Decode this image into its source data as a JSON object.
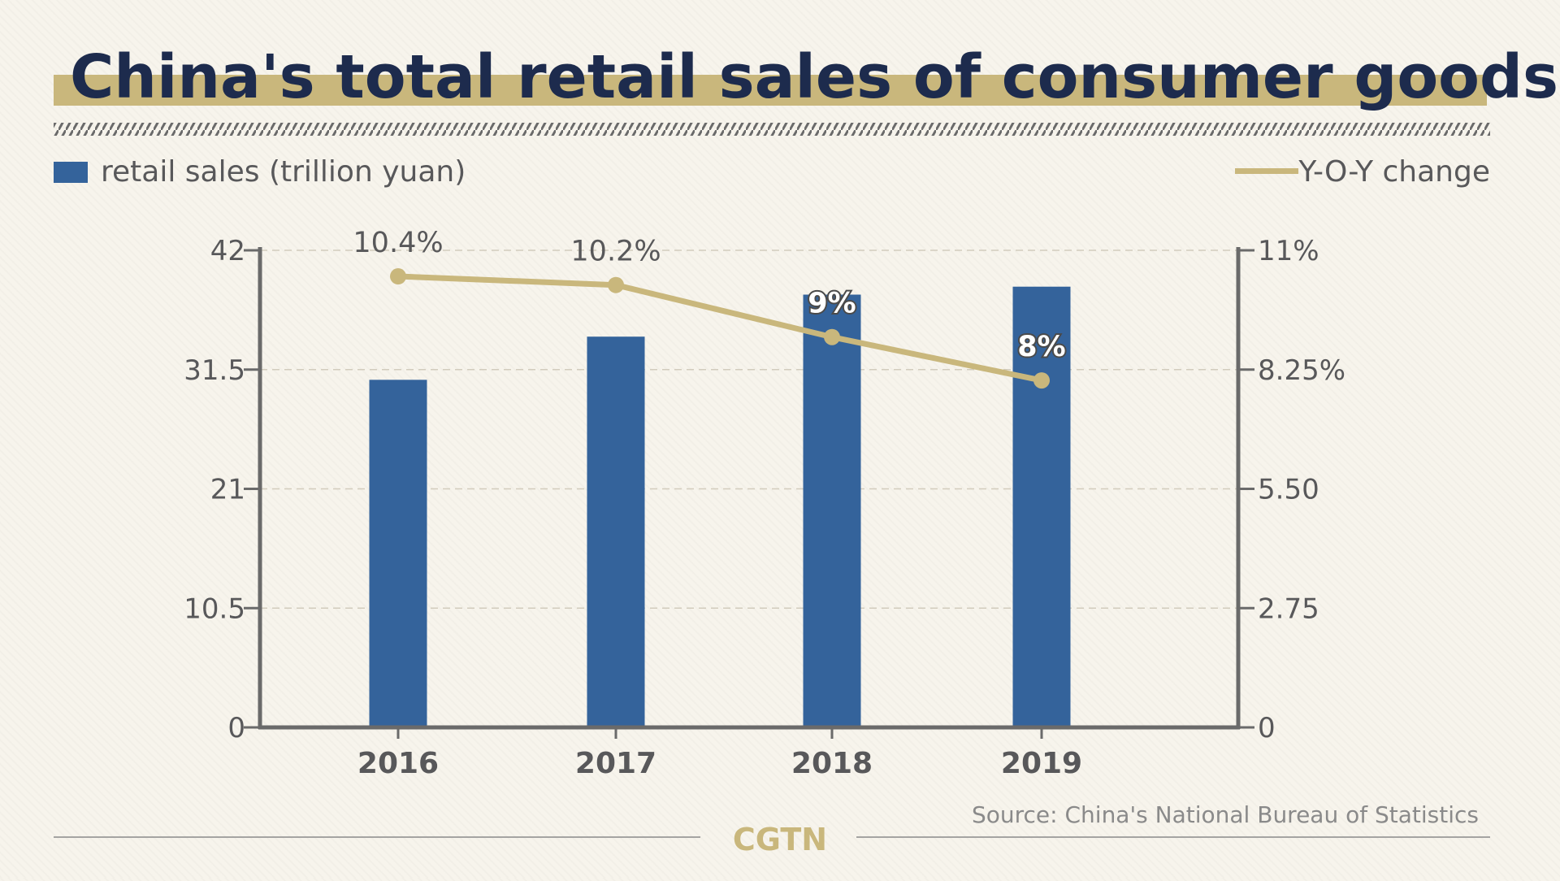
{
  "title": "China's total retail sales of consumer goods",
  "colors": {
    "bar": "#34639b",
    "line": "#c9b77c",
    "title": "#1d2b4d",
    "text": "#58585a",
    "axis": "#6a6a6a",
    "title_band": "#c9b77c",
    "background": "#f7f4ec"
  },
  "legend": {
    "bar_label": "retail sales (trillion yuan)",
    "line_label": "Y-O-Y change",
    "placement": "top"
  },
  "source": "Source: China's National Bureau of Statistics",
  "logo": "CGTN",
  "chart_data": {
    "type": "bar",
    "title": "China's total retail sales of consumer goods",
    "categories": [
      "2016",
      "2017",
      "2018",
      "2019"
    ],
    "series": [
      {
        "name": "retail sales (trillion yuan)",
        "type": "bar",
        "axis": "left",
        "values": [
          30.6,
          34.4,
          38.1,
          38.8
        ]
      },
      {
        "name": "Y-O-Y change",
        "type": "line",
        "axis": "right",
        "values": [
          10.4,
          10.2,
          9,
          8
        ],
        "labels": [
          "10.4%",
          "10.2%",
          "9%",
          "8%"
        ]
      }
    ],
    "left_axis": {
      "ylim": [
        0,
        42
      ],
      "ticks": [
        0,
        10.5,
        21,
        31.5,
        42
      ],
      "tick_labels": [
        "0",
        "10.5",
        "21",
        "31.5",
        "42"
      ]
    },
    "right_axis": {
      "ylim": [
        0,
        11
      ],
      "ticks": [
        0,
        2.75,
        5.5,
        8.25,
        11
      ],
      "tick_labels": [
        "0",
        "2.75",
        "5.50",
        "8.25%",
        "11%"
      ]
    },
    "grid": true,
    "grid_style": "dashed"
  }
}
